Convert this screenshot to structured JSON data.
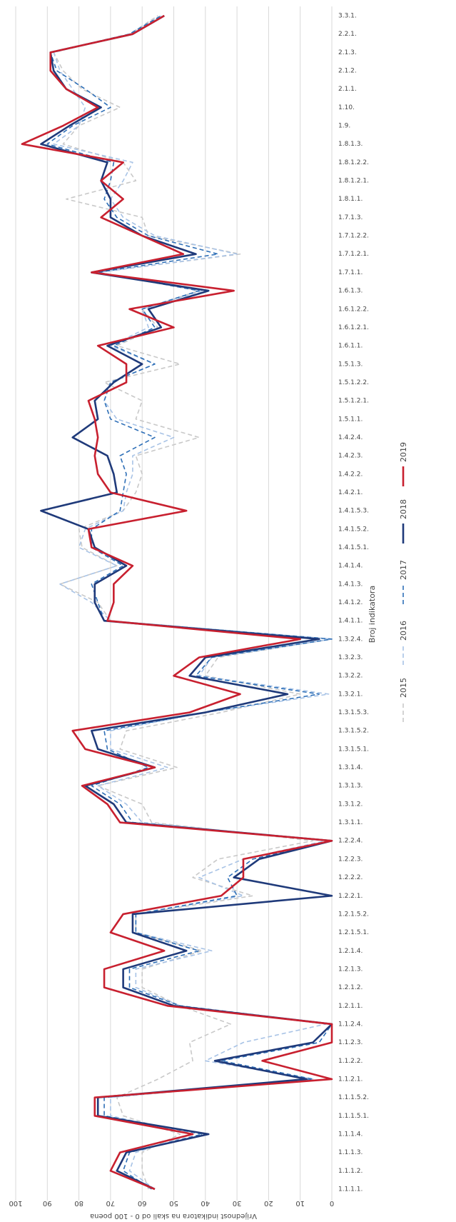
{
  "chart_data": {
    "type": "line",
    "x_label": "Broj indikatora",
    "y_label": "Vrijednost indikatora na skali od 0 - 100 poena",
    "categories": [
      "1.1.1.1.",
      "1.1.1.2.",
      "1.1.1.3.",
      "1.1.1.4.",
      "1.1.1.5.1.",
      "1.1.1.5.2.",
      "1.1.2.1.",
      "1.1.2.2.",
      "1.1.2.3.",
      "1.1.2.4.",
      "1.2.1.1.",
      "1.2.1.2.",
      "1.2.1.3.",
      "1.2.1.4.",
      "1.2.1.5.1.",
      "1.2.1.5.2.",
      "1.2.2.1.",
      "1.2.2.2.",
      "1.2.2.3.",
      "1.2.2.4.",
      "1.3.1.1.",
      "1.3.1.2.",
      "1.3.1.3.",
      "1.3.1.4.",
      "1.3.1.5.1.",
      "1.3.1.5.2.",
      "1.3.1.5.3.",
      "1.3.2.1.",
      "1.3.2.2.",
      "1.3.2.3.",
      "1.3.2.4.",
      "1.4.1.1.",
      "1.4.1.2.",
      "1.4.1.3.",
      "1.4.1.4.",
      "1.4.1.5.1.",
      "1.4.1.5.2.",
      "1.4.1.5.3.",
      "1.4.2.1.",
      "1.4.2.2.",
      "1.4.2.3.",
      "1.4.2.4.",
      "1.5.1.1.",
      "1.5.1.2.1.",
      "1.5.1.2.2.",
      "1.5.1.3.",
      "1.6.1.1.",
      "1.6.1.2.1.",
      "1.6.1.2.2.",
      "1.6.1.3.",
      "1.7.1.1.",
      "1.7.1.2.1.",
      "1.7.1.2.2.",
      "1.7.1.3.",
      "1.8.1.1.",
      "1.8.1.2.1.",
      "1.8.1.2.2.",
      "1.8.1.3.",
      "1.9.",
      "1.10.",
      "2.1.1.",
      "2.1.2.",
      "2.1.3.",
      "2.2.1.",
      "3.3.1."
    ],
    "series": [
      {
        "name": "2015",
        "color": "#c9c9c9",
        "line_style": "dashed",
        "values": [
          58,
          60,
          60,
          48,
          66,
          68,
          55,
          44,
          45,
          32,
          48,
          60,
          60,
          41,
          62,
          62,
          25,
          44,
          36,
          6,
          57,
          60,
          74,
          49,
          67,
          65,
          35,
          10,
          40,
          36,
          0,
          70,
          74,
          86,
          68,
          79,
          80,
          66,
          62,
          60,
          62,
          42,
          62,
          60,
          72,
          48,
          68,
          55,
          60,
          42,
          74,
          29,
          58,
          60,
          84,
          62,
          66,
          85,
          80,
          67,
          79,
          85,
          88,
          64,
          55
        ]
      },
      {
        "name": "2016",
        "color": "#a8c3e6",
        "line_style": "dashed",
        "values": [
          56,
          64,
          62,
          44,
          70,
          70,
          6,
          40,
          28,
          2,
          48,
          62,
          62,
          38,
          62,
          62,
          28,
          42,
          28,
          2,
          60,
          65,
          74,
          52,
          70,
          70,
          40,
          1,
          42,
          38,
          0,
          70,
          76,
          86,
          68,
          80,
          78,
          66,
          65,
          63,
          63,
          50,
          68,
          72,
          70,
          56,
          70,
          58,
          60,
          41,
          74,
          30,
          56,
          66,
          70,
          66,
          63,
          88,
          80,
          78,
          82,
          86,
          88,
          64,
          54
        ]
      },
      {
        "name": "2017",
        "color": "#2e6fb7",
        "line_style": "dashed",
        "values": [
          57,
          66,
          64,
          41,
          72,
          72,
          6,
          35,
          4,
          0,
          48,
          64,
          64,
          42,
          62,
          62,
          30,
          33,
          25,
          0,
          63,
          67,
          76,
          58,
          71,
          72,
          40,
          4,
          43,
          38,
          0,
          72,
          74,
          76,
          66,
          76,
          76,
          67,
          66,
          65,
          67,
          56,
          70,
          72,
          70,
          56,
          69,
          56,
          60,
          42,
          74,
          36,
          58,
          68,
          72,
          70,
          69,
          90,
          82,
          70,
          78,
          87,
          89,
          64,
          54
        ]
      },
      {
        "name": "2018",
        "color": "#1f3a7a",
        "line_style": "solid",
        "values": [
          56,
          68,
          65,
          39,
          74,
          74,
          8,
          37,
          6,
          0,
          50,
          66,
          66,
          46,
          63,
          63,
          0,
          31,
          23,
          0,
          65,
          69,
          78,
          56,
          74,
          76,
          40,
          14,
          45,
          40,
          4,
          72,
          75,
          75,
          65,
          75,
          77,
          92,
          68,
          69,
          71,
          82,
          74,
          75,
          69,
          60,
          71,
          54,
          58,
          39,
          76,
          43,
          60,
          70,
          70,
          73,
          71,
          92,
          83,
          73,
          84,
          88,
          89,
          63,
          53
        ]
      },
      {
        "name": "2019",
        "color": "#c8202f",
        "line_style": "solid",
        "values": [
          56,
          70,
          67,
          44,
          75,
          75,
          0,
          22,
          0,
          0,
          52,
          72,
          72,
          53,
          70,
          66,
          35,
          28,
          28,
          0,
          67,
          71,
          79,
          56,
          78,
          82,
          45,
          29,
          50,
          42,
          10,
          71,
          69,
          69,
          63,
          76,
          77,
          46,
          70,
          74,
          75,
          74,
          75,
          77,
          65,
          65,
          74,
          50,
          64,
          31,
          76,
          47,
          60,
          73,
          66,
          73,
          66,
          98,
          85,
          74,
          84,
          89,
          89,
          63,
          53
        ]
      }
    ],
    "ylim": [
      0,
      100
    ],
    "yticks": [
      0,
      10,
      20,
      30,
      40,
      50,
      60,
      70,
      80,
      90,
      100
    ],
    "grid": true
  }
}
